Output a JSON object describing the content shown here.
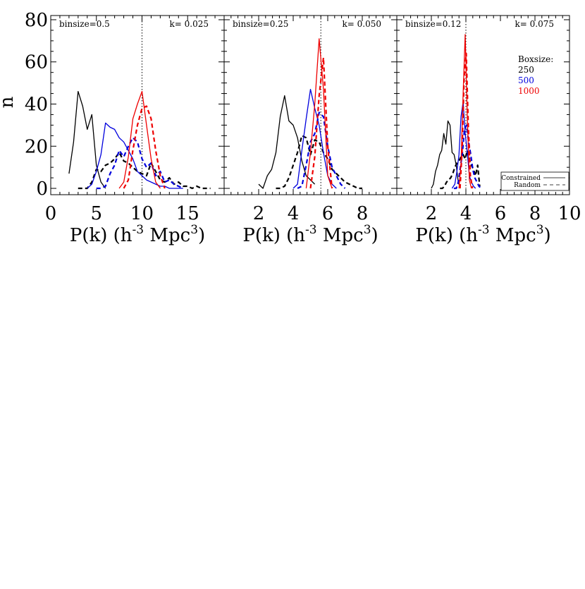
{
  "ylabel": "n",
  "xlabel": "P(k) (h-3 Mpc3)",
  "xlabel_parts": {
    "p": "P(k) (h",
    "e1": "-3",
    "m": " Mpc",
    "e2": "3",
    "close": ")"
  },
  "y_ticks": [
    "0",
    "20",
    "40",
    "60",
    "80"
  ],
  "colors": {
    "box250": "#000000",
    "box500": "#0000dd",
    "box1000": "#ee0000"
  },
  "legend": {
    "title": "Boxsize:",
    "entries": [
      "250",
      "500",
      "1000"
    ],
    "line_styles": [
      "Constrained",
      "Random"
    ]
  },
  "chart_data": [
    {
      "type": "line",
      "binsize": "binsize=0.5",
      "k": "k= 0.025",
      "xlim": [
        0,
        19
      ],
      "ylim": [
        -3,
        82
      ],
      "x_ticks": [
        0,
        5,
        10,
        15
      ],
      "x_tick_labels": [
        "0",
        "5",
        "10",
        "15"
      ],
      "vline": 10,
      "series": [
        {
          "box": "250",
          "style": "solid",
          "x": [
            2,
            2.5,
            3,
            3.5,
            4,
            4.5,
            5,
            5.5,
            6
          ],
          "y": [
            7,
            22,
            46,
            39,
            28,
            35,
            11,
            3,
            0
          ]
        },
        {
          "box": "250",
          "style": "dashed",
          "x": [
            3,
            3.5,
            4,
            4.5,
            5,
            5.5,
            6,
            6.5,
            7,
            7.5,
            8,
            8.5,
            9,
            9.5,
            10,
            10.5,
            11,
            11.5,
            12,
            12.5,
            13,
            13.5,
            14,
            14.5,
            15,
            15.5,
            16,
            16.5,
            17,
            17.5
          ],
          "y": [
            0,
            0,
            0,
            3,
            9,
            8,
            11,
            12,
            14,
            17,
            13,
            12,
            10,
            8,
            7,
            6,
            12,
            8,
            4,
            3,
            5,
            2,
            3,
            1,
            1,
            0,
            1,
            0,
            0,
            0
          ]
        },
        {
          "box": "500",
          "style": "solid",
          "x": [
            4,
            4.5,
            5,
            5.5,
            6,
            6.5,
            7,
            7.5,
            8,
            8.5,
            9,
            9.5,
            10,
            10.5,
            11,
            11.5,
            12,
            12.5,
            13,
            13.5,
            14,
            14.5
          ],
          "y": [
            0,
            2,
            8,
            16,
            31,
            29,
            28,
            24,
            22,
            18,
            14,
            8,
            6,
            4,
            3,
            2,
            1,
            1,
            0,
            0,
            0,
            0
          ]
        },
        {
          "box": "500",
          "style": "dashed",
          "x": [
            5,
            5.5,
            6,
            6.5,
            7,
            7.5,
            8,
            8.5,
            9,
            9.5,
            10,
            10.5,
            11,
            11.5,
            12,
            12.5,
            13,
            13.5,
            14,
            14.5
          ],
          "y": [
            0,
            0,
            1,
            7,
            11,
            18,
            15,
            20,
            24,
            22,
            14,
            10,
            12,
            6,
            8,
            3,
            4,
            2,
            1,
            0
          ]
        },
        {
          "box": "1000",
          "style": "solid",
          "x": [
            7.5,
            8,
            8.5,
            9,
            9.5,
            10,
            10.5,
            11,
            11.5,
            12
          ],
          "y": [
            0,
            3,
            15,
            33,
            40,
            46,
            30,
            14,
            3,
            0
          ]
        },
        {
          "box": "1000",
          "style": "dashed",
          "x": [
            8,
            8.5,
            9,
            9.5,
            10,
            10.5,
            11,
            11.5,
            12,
            12.5
          ],
          "y": [
            0,
            4,
            18,
            30,
            38,
            39,
            33,
            18,
            6,
            0
          ]
        }
      ]
    },
    {
      "type": "line",
      "binsize": "binsize=0.25",
      "k": "k= 0.050",
      "xlim": [
        0,
        10
      ],
      "ylim": [
        -3,
        82
      ],
      "x_ticks": [
        2,
        4,
        6,
        8
      ],
      "x_tick_labels": [
        "2",
        "4",
        "6",
        "8"
      ],
      "vline": 5.6,
      "series": [
        {
          "box": "250",
          "style": "solid",
          "x": [
            2,
            2.25,
            2.5,
            2.75,
            3,
            3.25,
            3.5,
            3.75,
            4,
            4.25,
            4.5,
            4.75,
            5,
            5.25
          ],
          "y": [
            2,
            0,
            6,
            9,
            17,
            34,
            44,
            32,
            30,
            24,
            13,
            6,
            4,
            2
          ]
        },
        {
          "box": "250",
          "style": "dashed",
          "x": [
            3,
            3.25,
            3.5,
            3.75,
            4,
            4.25,
            4.5,
            4.75,
            5,
            5.25,
            5.5,
            5.75,
            6,
            6.25,
            6.5,
            6.75,
            7,
            7.25,
            7.5,
            7.75,
            8
          ],
          "y": [
            0,
            0,
            1,
            5,
            11,
            17,
            25,
            24,
            16,
            23,
            22,
            17,
            14,
            9,
            7,
            5,
            3,
            2,
            1,
            0,
            0
          ]
        },
        {
          "box": "500",
          "style": "solid",
          "x": [
            4,
            4.25,
            4.5,
            4.75,
            5,
            5.25,
            5.5,
            5.75,
            6,
            6.25,
            6.5
          ],
          "y": [
            0,
            2,
            18,
            33,
            47,
            38,
            30,
            17,
            6,
            2,
            0
          ]
        },
        {
          "box": "500",
          "style": "dashed",
          "x": [
            4.25,
            4.5,
            4.75,
            5,
            5.25,
            5.5,
            5.75,
            6,
            6.25,
            6.5,
            6.75,
            7
          ],
          "y": [
            0,
            1,
            11,
            22,
            26,
            36,
            34,
            20,
            10,
            6,
            2,
            0
          ]
        },
        {
          "box": "1000",
          "style": "solid",
          "x": [
            4.75,
            5,
            5.25,
            5.5,
            5.75,
            6,
            6.25
          ],
          "y": [
            0,
            17,
            40,
            71,
            47,
            6,
            0
          ]
        },
        {
          "box": "1000",
          "style": "dashed",
          "x": [
            5,
            5.25,
            5.5,
            5.75,
            6,
            6.25
          ],
          "y": [
            0,
            15,
            44,
            62,
            20,
            0
          ]
        }
      ]
    },
    {
      "type": "line",
      "binsize": "binsize=0.12",
      "k": "k= 0.075",
      "xlim": [
        0,
        10
      ],
      "ylim": [
        -3,
        82
      ],
      "x_ticks": [
        2,
        4,
        6,
        8,
        10
      ],
      "x_tick_labels": [
        "2",
        "4",
        "6",
        "8",
        "10"
      ],
      "vline": 4,
      "series": [
        {
          "box": "250",
          "style": "solid",
          "x": [
            2,
            2.12,
            2.24,
            2.36,
            2.48,
            2.6,
            2.72,
            2.84,
            2.96,
            3.08,
            3.2,
            3.32,
            3.44,
            3.56,
            3.68
          ],
          "y": [
            0,
            2,
            8,
            11,
            16,
            18,
            26,
            21,
            32,
            30,
            17,
            16,
            11,
            3,
            0
          ]
        },
        {
          "box": "250",
          "style": "dashed",
          "x": [
            2.5,
            2.64,
            2.76,
            2.88,
            3.0,
            3.12,
            3.24,
            3.36,
            3.48,
            3.6,
            3.72,
            3.84,
            3.96,
            4.08,
            4.2,
            4.32,
            4.44,
            4.56,
            4.68,
            4.8
          ],
          "y": [
            0,
            0,
            1,
            3,
            4,
            5,
            7,
            10,
            12,
            13,
            15,
            16,
            14,
            18,
            14,
            11,
            9,
            6,
            11,
            1
          ]
        },
        {
          "box": "500",
          "style": "solid",
          "x": [
            3.2,
            3.36,
            3.48,
            3.6,
            3.72,
            3.84,
            3.96,
            4.08,
            4.2,
            4.32,
            4.44,
            4.56
          ],
          "y": [
            0,
            2,
            8,
            16,
            34,
            41,
            26,
            17,
            6,
            3,
            1,
            0
          ]
        },
        {
          "box": "500",
          "style": "dashed",
          "x": [
            3.3,
            3.44,
            3.56,
            3.68,
            3.8,
            3.92,
            4.04,
            4.16,
            4.28,
            4.4,
            4.52,
            4.64,
            4.76,
            4.88
          ],
          "y": [
            0,
            0,
            3,
            10,
            17,
            28,
            30,
            22,
            16,
            9,
            5,
            3,
            1,
            0
          ]
        },
        {
          "box": "1000",
          "style": "solid",
          "x": [
            3.6,
            3.72,
            3.84,
            3.96,
            4.08,
            4.2,
            4.32
          ],
          "y": [
            0,
            12,
            45,
            73,
            34,
            4,
            0
          ]
        },
        {
          "box": "1000",
          "style": "dashed",
          "x": [
            3.66,
            3.78,
            3.9,
            4.02,
            4.14,
            4.26,
            4.38
          ],
          "y": [
            0,
            18,
            52,
            64,
            30,
            6,
            0
          ]
        }
      ]
    }
  ]
}
